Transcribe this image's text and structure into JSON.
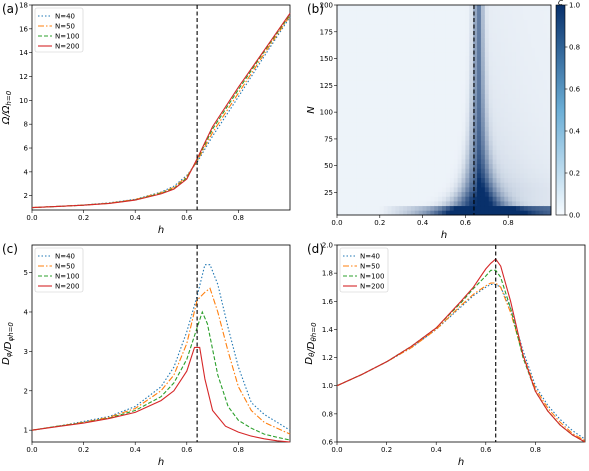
{
  "chart_data": [
    {
      "panel": "(a)",
      "type": "line",
      "xlabel": "h",
      "ylabel": "Ω/Ω_{h=0}",
      "xlim": [
        0,
        1.0
      ],
      "ylim": [
        0.8,
        18
      ],
      "xticks": [
        "0.0",
        "0.2",
        "0.4",
        "0.6",
        "0.8"
      ],
      "yticks": [
        "2",
        "4",
        "6",
        "8",
        "10",
        "12",
        "14",
        "16",
        "18"
      ],
      "vline": 0.64,
      "legend": "top-left",
      "series": [
        {
          "name": "N=40",
          "color": "#1f77b4",
          "dash": "1.5,2",
          "x": [
            0,
            0.1,
            0.2,
            0.3,
            0.4,
            0.5,
            0.55,
            0.6,
            0.64,
            0.7,
            0.8,
            0.9,
            1.0
          ],
          "y": [
            1.0,
            1.1,
            1.22,
            1.4,
            1.7,
            2.3,
            2.8,
            3.7,
            4.8,
            7.0,
            10.3,
            13.7,
            17.0
          ]
        },
        {
          "name": "N=50",
          "color": "#ff7f0e",
          "dash": "6,2,1.5,2",
          "x": [
            0,
            0.1,
            0.2,
            0.3,
            0.4,
            0.5,
            0.55,
            0.6,
            0.64,
            0.7,
            0.8,
            0.9,
            1.0
          ],
          "y": [
            1.0,
            1.1,
            1.21,
            1.38,
            1.68,
            2.25,
            2.7,
            3.6,
            4.9,
            7.3,
            10.6,
            13.9,
            17.1
          ]
        },
        {
          "name": "N=100",
          "color": "#2ca02c",
          "dash": "4,2",
          "x": [
            0,
            0.1,
            0.2,
            0.3,
            0.4,
            0.5,
            0.55,
            0.6,
            0.64,
            0.7,
            0.8,
            0.9,
            1.0
          ],
          "y": [
            1.0,
            1.1,
            1.2,
            1.36,
            1.65,
            2.2,
            2.6,
            3.5,
            5.0,
            7.6,
            10.9,
            14.1,
            17.2
          ]
        },
        {
          "name": "N=200",
          "color": "#d62728",
          "dash": "",
          "x": [
            0,
            0.1,
            0.2,
            0.3,
            0.4,
            0.5,
            0.55,
            0.6,
            0.64,
            0.7,
            0.8,
            0.9,
            1.0
          ],
          "y": [
            1.0,
            1.1,
            1.2,
            1.35,
            1.63,
            2.15,
            2.55,
            3.4,
            5.1,
            7.8,
            11.1,
            14.2,
            17.3
          ]
        }
      ]
    },
    {
      "panel": "(b)",
      "type": "heatmap",
      "xlabel": "h",
      "ylabel": "N",
      "colorbar_label": "C",
      "xlim": [
        0,
        1.0
      ],
      "ylim": [
        4,
        200
      ],
      "xticks": [
        "0.0",
        "0.2",
        "0.4",
        "0.6",
        "0.8"
      ],
      "yticks": [
        "25",
        "50",
        "75",
        "100",
        "125",
        "150",
        "175",
        "200"
      ],
      "cticks": [
        "0.0",
        "0.2",
        "0.4",
        "0.6",
        "0.8",
        "1.0"
      ],
      "vline": 0.64,
      "peak_h": 0.66
    },
    {
      "panel": "(c)",
      "type": "line",
      "xlabel": "h",
      "ylabel": "D_φ/D_{φh=0}",
      "xlim": [
        0,
        1.0
      ],
      "ylim": [
        0.7,
        5.7
      ],
      "xticks": [
        "0.0",
        "0.2",
        "0.4",
        "0.6",
        "0.8"
      ],
      "yticks": [
        "1",
        "2",
        "3",
        "4",
        "5"
      ],
      "vline": 0.64,
      "legend": "top-left",
      "series": [
        {
          "name": "N=40",
          "color": "#1f77b4",
          "dash": "1.5,2",
          "x": [
            0,
            0.1,
            0.2,
            0.3,
            0.4,
            0.5,
            0.55,
            0.6,
            0.64,
            0.67,
            0.69,
            0.72,
            0.76,
            0.8,
            0.85,
            0.9,
            0.95,
            1.0
          ],
          "y": [
            1.0,
            1.1,
            1.22,
            1.35,
            1.6,
            2.1,
            2.6,
            3.5,
            4.4,
            5.2,
            5.2,
            4.7,
            3.6,
            2.6,
            1.7,
            1.4,
            1.2,
            1.0
          ]
        },
        {
          "name": "N=50",
          "color": "#ff7f0e",
          "dash": "6,2,1.5,2",
          "x": [
            0,
            0.1,
            0.2,
            0.3,
            0.4,
            0.5,
            0.55,
            0.6,
            0.64,
            0.67,
            0.69,
            0.72,
            0.76,
            0.8,
            0.85,
            0.9,
            0.95,
            1.0
          ],
          "y": [
            1.0,
            1.1,
            1.2,
            1.33,
            1.55,
            2.0,
            2.4,
            3.2,
            4.3,
            4.5,
            4.6,
            4.0,
            3.0,
            2.1,
            1.5,
            1.2,
            1.05,
            0.9
          ]
        },
        {
          "name": "N=100",
          "color": "#2ca02c",
          "dash": "4,2",
          "x": [
            0,
            0.1,
            0.2,
            0.3,
            0.4,
            0.5,
            0.55,
            0.6,
            0.64,
            0.66,
            0.68,
            0.72,
            0.76,
            0.8,
            0.85,
            0.9,
            0.95,
            1.0
          ],
          "y": [
            1.0,
            1.1,
            1.19,
            1.31,
            1.5,
            1.85,
            2.2,
            2.8,
            3.6,
            4.0,
            3.7,
            2.4,
            1.6,
            1.25,
            1.05,
            0.9,
            0.82,
            0.75
          ]
        },
        {
          "name": "N=200",
          "color": "#d62728",
          "dash": "",
          "x": [
            0,
            0.1,
            0.2,
            0.3,
            0.4,
            0.5,
            0.55,
            0.6,
            0.63,
            0.65,
            0.67,
            0.7,
            0.75,
            0.8,
            0.85,
            0.9,
            0.95,
            1.0
          ],
          "y": [
            1.0,
            1.09,
            1.18,
            1.3,
            1.45,
            1.75,
            2.0,
            2.5,
            3.1,
            3.1,
            2.3,
            1.5,
            1.1,
            0.95,
            0.85,
            0.78,
            0.73,
            0.7
          ]
        }
      ]
    },
    {
      "panel": "(d)",
      "type": "line",
      "xlabel": "h",
      "ylabel": "D_θ/D_{θh=0}",
      "xlim": [
        0,
        1.0
      ],
      "ylim": [
        0.6,
        2.0
      ],
      "xticks": [
        "0.0",
        "0.2",
        "0.4",
        "0.6",
        "0.8"
      ],
      "yticks": [
        "0.6",
        "0.8",
        "1.0",
        "1.2",
        "1.4",
        "1.6",
        "1.8",
        "2.0"
      ],
      "vline": 0.64,
      "legend": "top-left",
      "series": [
        {
          "name": "N=40",
          "color": "#1f77b4",
          "dash": "1.5,2",
          "x": [
            0,
            0.1,
            0.2,
            0.3,
            0.4,
            0.5,
            0.55,
            0.6,
            0.62,
            0.64,
            0.66,
            0.7,
            0.75,
            0.8,
            0.85,
            0.9,
            0.95,
            1.0
          ],
          "y": [
            1.0,
            1.08,
            1.17,
            1.27,
            1.4,
            1.56,
            1.64,
            1.7,
            1.72,
            1.72,
            1.7,
            1.55,
            1.25,
            1.0,
            0.86,
            0.76,
            0.68,
            0.62
          ]
        },
        {
          "name": "N=50",
          "color": "#ff7f0e",
          "dash": "6,2,1.5,2",
          "x": [
            0,
            0.1,
            0.2,
            0.3,
            0.4,
            0.5,
            0.55,
            0.6,
            0.62,
            0.64,
            0.66,
            0.7,
            0.75,
            0.8,
            0.85,
            0.9,
            0.95,
            1.0
          ],
          "y": [
            1.0,
            1.08,
            1.17,
            1.27,
            1.4,
            1.57,
            1.65,
            1.71,
            1.73,
            1.73,
            1.7,
            1.52,
            1.22,
            0.98,
            0.84,
            0.74,
            0.66,
            0.61
          ]
        },
        {
          "name": "N=100",
          "color": "#2ca02c",
          "dash": "4,2",
          "x": [
            0,
            0.1,
            0.2,
            0.3,
            0.4,
            0.5,
            0.55,
            0.6,
            0.62,
            0.64,
            0.66,
            0.7,
            0.75,
            0.8,
            0.85,
            0.9,
            0.95,
            1.0
          ],
          "y": [
            1.0,
            1.08,
            1.17,
            1.28,
            1.41,
            1.59,
            1.69,
            1.78,
            1.82,
            1.82,
            1.77,
            1.55,
            1.2,
            0.96,
            0.82,
            0.72,
            0.65,
            0.6
          ]
        },
        {
          "name": "N=200",
          "color": "#d62728",
          "dash": "",
          "x": [
            0,
            0.1,
            0.2,
            0.3,
            0.4,
            0.5,
            0.55,
            0.6,
            0.62,
            0.64,
            0.66,
            0.7,
            0.75,
            0.8,
            0.85,
            0.9,
            0.95,
            1.0
          ],
          "y": [
            1.0,
            1.08,
            1.17,
            1.28,
            1.41,
            1.6,
            1.7,
            1.83,
            1.87,
            1.9,
            1.85,
            1.6,
            1.22,
            0.96,
            0.82,
            0.72,
            0.65,
            0.6
          ]
        }
      ]
    }
  ]
}
